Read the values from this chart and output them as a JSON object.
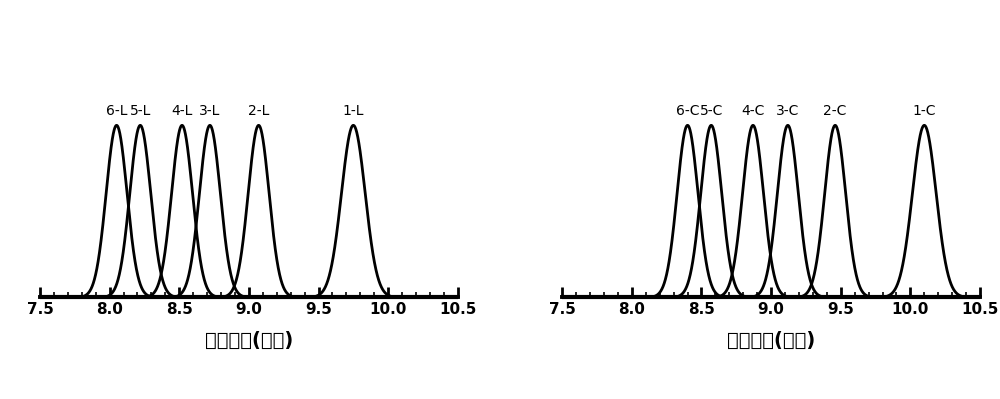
{
  "left_peaks": {
    "labels": [
      "6-L",
      "5-L",
      "4-L",
      "3-L",
      "2-L",
      "1-L"
    ],
    "centers": [
      8.05,
      8.22,
      8.52,
      8.72,
      9.07,
      9.75
    ],
    "sigmas": [
      0.075,
      0.075,
      0.075,
      0.075,
      0.075,
      0.085
    ]
  },
  "right_peaks": {
    "labels": [
      "6-C",
      "5-C",
      "4-C",
      "3-C",
      "2-C",
      "1-C"
    ],
    "centers": [
      8.4,
      8.57,
      8.87,
      9.12,
      9.46,
      10.1
    ],
    "sigmas": [
      0.075,
      0.075,
      0.075,
      0.075,
      0.075,
      0.085
    ]
  },
  "xlim": [
    7.5,
    10.5
  ],
  "xticks": [
    7.5,
    8.0,
    8.5,
    9.0,
    9.5,
    10.0,
    10.5
  ],
  "xlabel": "流出时间(分钟)",
  "line_color": "#000000",
  "line_width": 2.0,
  "bg_color": "#ffffff",
  "xlabel_fontsize": 14,
  "tick_fontsize": 11,
  "peak_label_fontsize": 10
}
